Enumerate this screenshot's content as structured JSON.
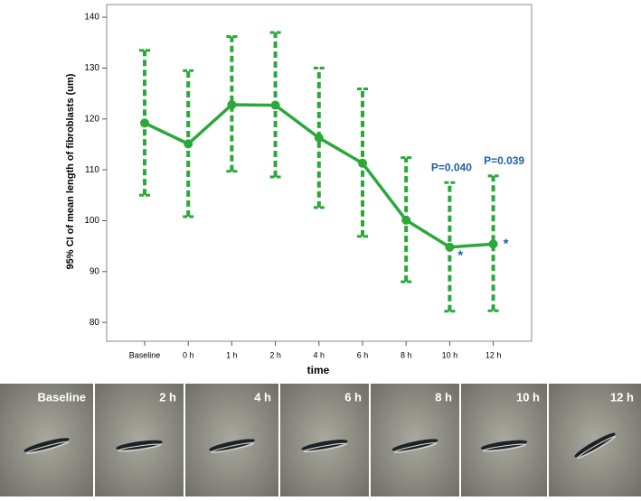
{
  "chart_data": {
    "type": "line",
    "x_label": "time",
    "y_label": "95% CI of mean length of fibroblasts (um)",
    "categories": [
      "Baseline",
      "0 h",
      "1 h",
      "2 h",
      "4 h",
      "6 h",
      "8 h",
      "10 h",
      "12 h"
    ],
    "series": [
      {
        "color": "#2aa83a",
        "values": [
          119.2,
          115.1,
          122.8,
          122.7,
          116.3,
          111.3,
          100.1,
          94.8,
          95.4
        ],
        "ci_low": [
          105,
          100.8,
          109.7,
          108.6,
          102.6,
          96.9,
          88,
          82.2,
          82.3
        ],
        "ci_high": [
          133.5,
          129.5,
          136.2,
          137,
          130,
          125.9,
          112.4,
          107.5,
          108.8
        ]
      }
    ],
    "ylim": [
      76.3,
      142.5
    ],
    "yticks": [
      80,
      90,
      100,
      110,
      120,
      130,
      140
    ],
    "annotations": [
      {
        "text": "P=0.040",
        "star": "*"
      },
      {
        "text": "P=0.039",
        "star": "*"
      }
    ],
    "annotation_color": "#1f5fa8"
  },
  "image_strip": {
    "labels": [
      "Baseline",
      "2 h",
      "4 h",
      "6 h",
      "8 h",
      "10 h",
      "12 h"
    ]
  }
}
